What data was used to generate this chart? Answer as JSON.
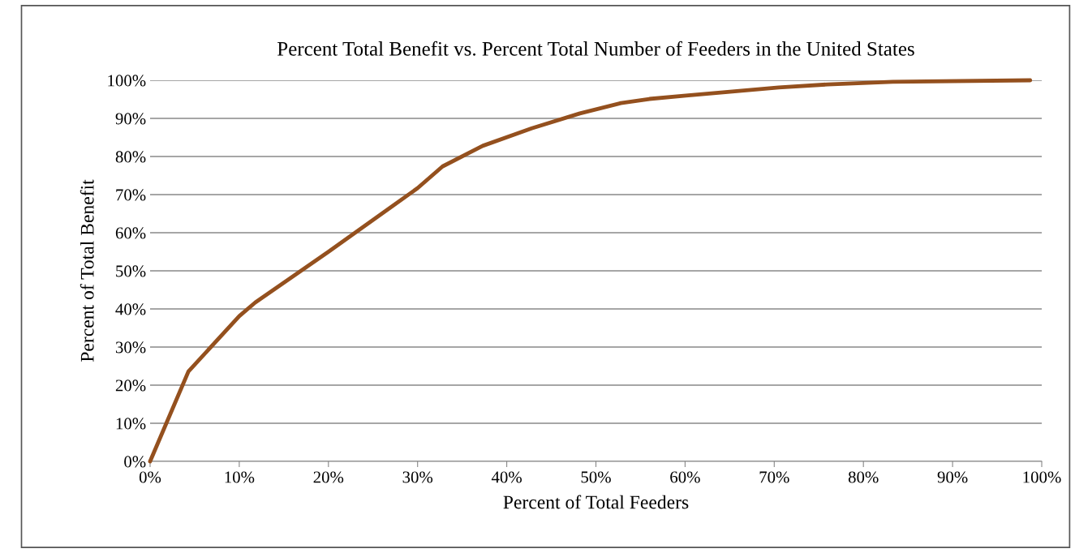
{
  "chart_data": {
    "type": "line",
    "title": "Percent Total Benefit vs. Percent Total Number of Feeders in the United States",
    "xlabel": "Percent of Total Feeders",
    "ylabel": "Percent of Total Benefit",
    "series": [
      {
        "color": "#94501e",
        "x": [
          0,
          4.3,
          10.0,
          11.8,
          20.0,
          30.0,
          32.8,
          37.3,
          42.8,
          48.2,
          52.8,
          56.0,
          60.1,
          70.5,
          76.0,
          83.3,
          98.7
        ],
        "values": [
          0,
          23.6,
          38.1,
          41.7,
          55.0,
          71.7,
          77.4,
          82.8,
          87.4,
          91.3,
          94.0,
          95.1,
          96.0,
          98.1,
          98.9,
          99.6,
          100
        ]
      }
    ],
    "xlim": [
      0,
      100
    ],
    "ylim": [
      0,
      100
    ],
    "xticks": [
      {
        "value": 0,
        "label": "0%"
      },
      {
        "value": 10,
        "label": "10%"
      },
      {
        "value": 20,
        "label": "20%"
      },
      {
        "value": 30,
        "label": "30%"
      },
      {
        "value": 40,
        "label": "40%"
      },
      {
        "value": 50,
        "label": "50%"
      },
      {
        "value": 60,
        "label": "60%"
      },
      {
        "value": 70,
        "label": "70%"
      },
      {
        "value": 80,
        "label": "80%"
      },
      {
        "value": 90,
        "label": "90%"
      },
      {
        "value": 100,
        "label": "100%"
      }
    ],
    "yticks": [
      {
        "value": 0,
        "label": "0%"
      },
      {
        "value": 10,
        "label": "10%"
      },
      {
        "value": 20,
        "label": "20%"
      },
      {
        "value": 30,
        "label": "30%"
      },
      {
        "value": 40,
        "label": "40%"
      },
      {
        "value": 50,
        "label": "50%"
      },
      {
        "value": 60,
        "label": "60%"
      },
      {
        "value": 70,
        "label": "70%"
      },
      {
        "value": 80,
        "label": "80%"
      },
      {
        "value": 90,
        "label": "90%"
      },
      {
        "value": 100,
        "label": "100%"
      }
    ],
    "grid": "y",
    "legend": false
  }
}
